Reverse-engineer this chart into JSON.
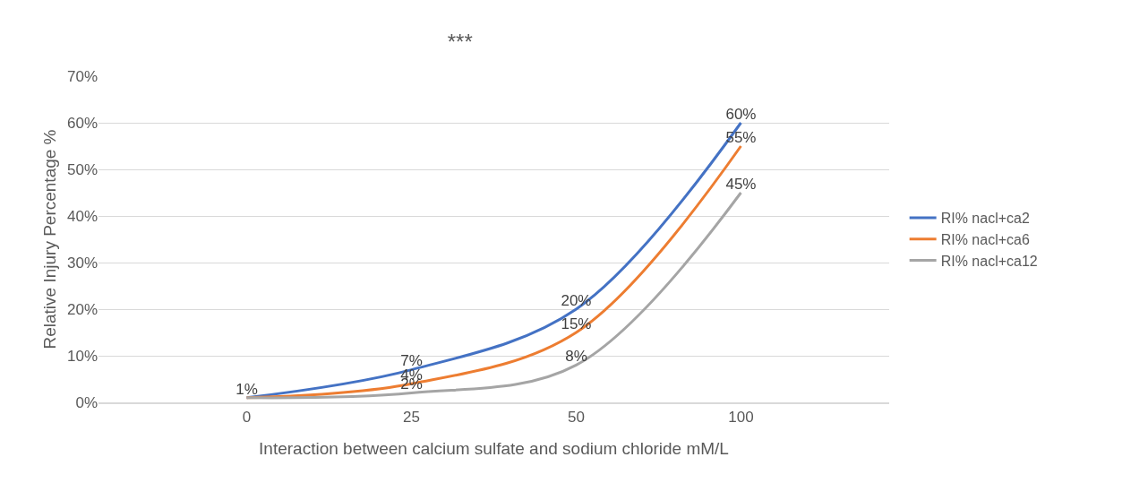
{
  "chart_data": {
    "type": "line",
    "title": "***",
    "xlabel": "Interaction between calcium sulfate and sodium chloride mM/L",
    "ylabel": "Relative Injury Percentage %",
    "categories": [
      "0",
      "25",
      "50",
      "100"
    ],
    "series": [
      {
        "name": "RI% nacl+ca2",
        "color": "#4472c4",
        "values": [
          1,
          7,
          20,
          60
        ],
        "value_labels": [
          "1%",
          "7%",
          "20%",
          "60%"
        ]
      },
      {
        "name": "RI% nacl+ca6",
        "color": "#ed7d31",
        "values": [
          1,
          4,
          15,
          55
        ],
        "value_labels": [
          null,
          "4%",
          "15%",
          "55%"
        ]
      },
      {
        "name": "RI% nacl+ca12",
        "color": "#a5a5a5",
        "values": [
          1,
          2,
          8,
          45
        ],
        "value_labels": [
          null,
          "2%",
          "8%",
          "45%"
        ]
      }
    ],
    "ylim": [
      0,
      70
    ],
    "yticks": [
      {
        "value": 0,
        "label": "0%"
      },
      {
        "value": 10,
        "label": "10%"
      },
      {
        "value": 20,
        "label": "20%"
      },
      {
        "value": 30,
        "label": "30%"
      },
      {
        "value": 40,
        "label": "40%"
      },
      {
        "value": 50,
        "label": "50%"
      },
      {
        "value": 60,
        "label": "60%"
      },
      {
        "value": 70,
        "label": "70%"
      }
    ],
    "grid": "y",
    "legend": "right",
    "marker": "none",
    "line_style": "solid"
  }
}
